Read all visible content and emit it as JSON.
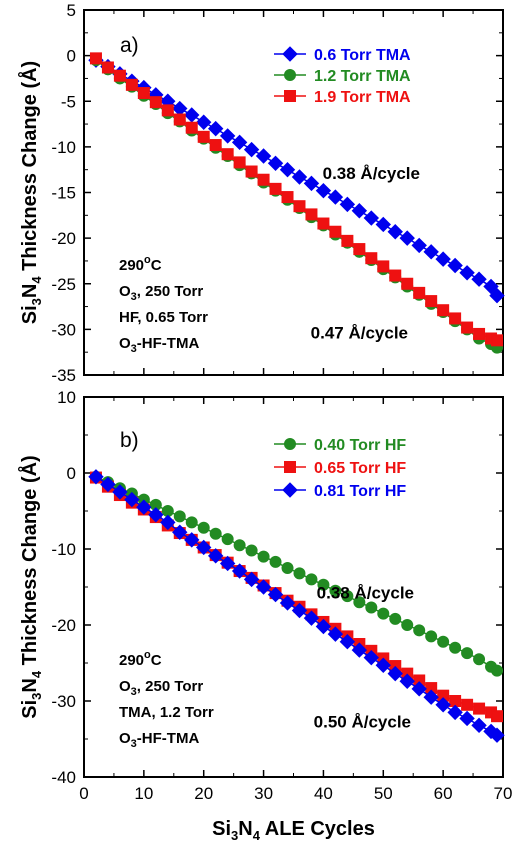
{
  "chart_data": [
    {
      "type": "line",
      "panel_label": "a)",
      "ylabel_parts": [
        "Si",
        "3",
        "N",
        "4",
        " Thickness Change (Å)"
      ],
      "xlim": [
        0,
        70
      ],
      "ylim": [
        -35,
        5
      ],
      "xticks": [],
      "yticks": [
        "5",
        "0",
        "-5",
        "-10",
        "-15",
        "-20",
        "-25",
        "-30",
        "-35"
      ],
      "legend_position": "top-right",
      "series": [
        {
          "name": "0.6 Torr TMA",
          "color": "#0000ee",
          "marker": "diamond",
          "x": [
            2,
            4,
            6,
            8,
            10,
            12,
            14,
            16,
            18,
            20,
            22,
            24,
            26,
            28,
            30,
            32,
            34,
            36,
            38,
            40,
            42,
            44,
            46,
            48,
            50,
            52,
            54,
            56,
            58,
            60,
            62,
            64,
            66,
            68,
            69
          ],
          "y": [
            -0.5,
            -1.2,
            -2.0,
            -2.8,
            -3.5,
            -4.3,
            -5.0,
            -5.8,
            -6.5,
            -7.3,
            -8.0,
            -8.8,
            -9.5,
            -10.3,
            -11.0,
            -11.8,
            -12.5,
            -13.3,
            -14.0,
            -14.8,
            -15.5,
            -16.3,
            -17.0,
            -17.8,
            -18.5,
            -19.3,
            -20.0,
            -20.8,
            -21.5,
            -22.3,
            -23.0,
            -23.8,
            -24.5,
            -25.3,
            -26.3
          ]
        },
        {
          "name": "1.2 Torr TMA",
          "color": "#228b22",
          "marker": "circle",
          "x": [
            2,
            4,
            6,
            8,
            10,
            12,
            14,
            16,
            18,
            20,
            22,
            24,
            26,
            28,
            30,
            32,
            34,
            36,
            38,
            40,
            42,
            44,
            46,
            48,
            50,
            52,
            54,
            56,
            58,
            60,
            62,
            64,
            66,
            68,
            69
          ],
          "y": [
            -0.5,
            -1.5,
            -2.5,
            -3.4,
            -4.4,
            -5.3,
            -6.3,
            -7.2,
            -8.2,
            -9.1,
            -10.1,
            -11.0,
            -12.0,
            -12.9,
            -13.9,
            -14.8,
            -15.8,
            -16.7,
            -17.7,
            -18.6,
            -19.6,
            -20.5,
            -21.5,
            -22.4,
            -23.4,
            -24.3,
            -25.3,
            -26.2,
            -27.2,
            -28.1,
            -29.1,
            -30.0,
            -31.0,
            -31.6,
            -32.0
          ]
        },
        {
          "name": "1.9 Torr TMA",
          "color": "#ee1111",
          "marker": "square",
          "x": [
            2,
            4,
            6,
            8,
            10,
            12,
            14,
            16,
            18,
            20,
            22,
            24,
            26,
            28,
            30,
            32,
            34,
            36,
            38,
            40,
            42,
            44,
            46,
            48,
            50,
            52,
            54,
            56,
            58,
            60,
            62,
            64,
            66,
            68,
            69
          ],
          "y": [
            -0.3,
            -1.3,
            -2.2,
            -3.2,
            -4.1,
            -5.1,
            -6.0,
            -7.0,
            -7.9,
            -8.9,
            -9.8,
            -10.8,
            -11.7,
            -12.7,
            -13.6,
            -14.6,
            -15.5,
            -16.5,
            -17.4,
            -18.4,
            -19.3,
            -20.3,
            -21.2,
            -22.2,
            -23.1,
            -24.1,
            -25.0,
            -26.0,
            -26.9,
            -27.9,
            -28.8,
            -29.8,
            -30.5,
            -31.0,
            -31.2
          ]
        }
      ],
      "annotations": [
        {
          "text": "0.38 Å/cycle",
          "x": 48,
          "y": -13.5
        },
        {
          "text": "0.47 Å/cycle",
          "x": 46,
          "y": -31
        }
      ],
      "conditions": {
        "temp_value": "290",
        "temp_unit": "C",
        "temp_degree": "o",
        "lines": [
          {
            "p1": "O",
            "sub": "3",
            "p2": ", 250 Torr"
          },
          {
            "p1": "HF, 0.65 Torr",
            "sub": "",
            "p2": ""
          },
          {
            "p1": "O",
            "sub": "3",
            "p2": "-HF-TMA"
          }
        ]
      }
    },
    {
      "type": "line",
      "panel_label": "b)",
      "ylabel_parts": [
        "Si",
        "3",
        "N",
        "4",
        " Thickness Change (Å)"
      ],
      "xlabel_parts": [
        "Si",
        "3",
        "N",
        "4",
        " ALE Cycles"
      ],
      "xlim": [
        0,
        70
      ],
      "ylim": [
        -40,
        10
      ],
      "xticks": [
        "0",
        "10",
        "20",
        "30",
        "40",
        "50",
        "60",
        "70"
      ],
      "yticks": [
        "10",
        "0",
        "-10",
        "-20",
        "-30",
        "-40"
      ],
      "legend_position": "top-right",
      "series": [
        {
          "name": "0.40 Torr HF",
          "color": "#228b22",
          "marker": "circle",
          "x": [
            2,
            4,
            6,
            8,
            10,
            12,
            14,
            16,
            18,
            20,
            22,
            24,
            26,
            28,
            30,
            32,
            34,
            36,
            38,
            40,
            42,
            44,
            46,
            48,
            50,
            52,
            54,
            56,
            58,
            60,
            62,
            64,
            66,
            68,
            69
          ],
          "y": [
            -0.5,
            -1.2,
            -2.0,
            -2.7,
            -3.5,
            -4.2,
            -5.0,
            -5.7,
            -6.5,
            -7.2,
            -8.0,
            -8.7,
            -9.5,
            -10.2,
            -11.0,
            -11.7,
            -12.5,
            -13.2,
            -14.0,
            -14.7,
            -15.5,
            -16.2,
            -17.0,
            -17.7,
            -18.5,
            -19.2,
            -20.0,
            -20.7,
            -21.5,
            -22.2,
            -23.0,
            -23.7,
            -24.5,
            -25.5,
            -26.0
          ]
        },
        {
          "name": "0.65 Torr HF",
          "color": "#ee1111",
          "marker": "square",
          "x": [
            2,
            4,
            6,
            8,
            10,
            12,
            14,
            16,
            18,
            20,
            22,
            24,
            26,
            28,
            30,
            32,
            34,
            36,
            38,
            40,
            42,
            44,
            46,
            48,
            50,
            52,
            54,
            56,
            58,
            60,
            62,
            64,
            66,
            68,
            69
          ],
          "y": [
            -0.6,
            -1.8,
            -2.9,
            -3.9,
            -4.8,
            -5.8,
            -6.9,
            -7.9,
            -8.8,
            -9.8,
            -10.8,
            -11.8,
            -12.9,
            -13.8,
            -14.8,
            -15.8,
            -16.8,
            -17.6,
            -18.6,
            -19.6,
            -20.5,
            -21.5,
            -22.5,
            -23.4,
            -24.4,
            -25.4,
            -26.4,
            -27.3,
            -28.3,
            -29.3,
            -30.0,
            -30.5,
            -31.0,
            -31.5,
            -32.0
          ]
        },
        {
          "name": "0.81 Torr HF",
          "color": "#0000ee",
          "marker": "diamond",
          "x": [
            2,
            4,
            6,
            8,
            10,
            12,
            14,
            16,
            18,
            20,
            22,
            24,
            26,
            28,
            30,
            32,
            34,
            36,
            38,
            40,
            42,
            44,
            46,
            48,
            50,
            52,
            54,
            56,
            58,
            60,
            62,
            64,
            66,
            68,
            69
          ],
          "y": [
            -0.5,
            -1.5,
            -2.5,
            -3.5,
            -4.5,
            -5.5,
            -6.5,
            -7.8,
            -8.8,
            -9.8,
            -10.9,
            -11.9,
            -12.9,
            -14.0,
            -15.0,
            -16.0,
            -17.1,
            -18.1,
            -19.1,
            -20.2,
            -21.2,
            -22.2,
            -23.3,
            -24.3,
            -25.3,
            -26.4,
            -27.4,
            -28.4,
            -29.5,
            -30.5,
            -31.5,
            -32.3,
            -33.2,
            -34.0,
            -34.5
          ]
        }
      ],
      "annotations": [
        {
          "text": "0.38 Å/cycle",
          "x": 47,
          "y": -16.5
        },
        {
          "text": "0.50 Å/cycle",
          "x": 46.5,
          "y": -33.5
        }
      ],
      "conditions": {
        "temp_value": "290",
        "temp_unit": "C",
        "temp_degree": "o",
        "lines": [
          {
            "p1": "O",
            "sub": "3",
            "p2": ", 250 Torr"
          },
          {
            "p1": "TMA, 1.2 Torr",
            "sub": "",
            "p2": ""
          },
          {
            "p1": "O",
            "sub": "3",
            "p2": "-HF-TMA"
          }
        ]
      }
    }
  ]
}
